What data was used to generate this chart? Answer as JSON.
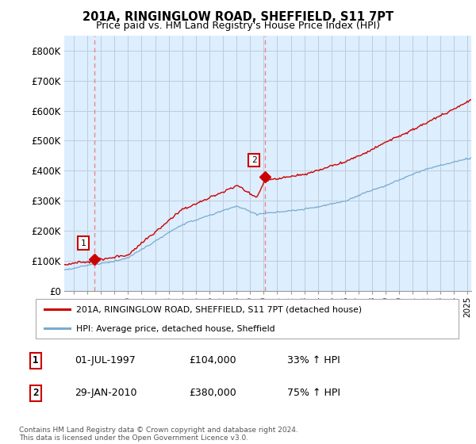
{
  "title": "201A, RINGINGLOW ROAD, SHEFFIELD, S11 7PT",
  "subtitle": "Price paid vs. HM Land Registry's House Price Index (HPI)",
  "ylabel_ticks": [
    "£0",
    "£100K",
    "£200K",
    "£300K",
    "£400K",
    "£500K",
    "£600K",
    "£700K",
    "£800K"
  ],
  "ylim": [
    0,
    850000
  ],
  "xlim_start": 1995.3,
  "xlim_end": 2025.3,
  "sale1_x": 1997.5,
  "sale1_y": 104000,
  "sale2_x": 2010.08,
  "sale2_y": 380000,
  "red_line_color": "#cc0000",
  "blue_line_color": "#7aaacc",
  "marker_color": "#cc0000",
  "vline_color": "#e88888",
  "background_color": "#ffffff",
  "plot_bg_color": "#ddeeff",
  "grid_color": "#c0ccd8",
  "legend_red_label": "201A, RINGINGLOW ROAD, SHEFFIELD, S11 7PT (detached house)",
  "legend_blue_label": "HPI: Average price, detached house, Sheffield",
  "footer": "Contains HM Land Registry data © Crown copyright and database right 2024.\nThis data is licensed under the Open Government Licence v3.0.",
  "table_row1": [
    "1",
    "01-JUL-1997",
    "£104,000",
    "33% ↑ HPI"
  ],
  "table_row2": [
    "2",
    "29-JAN-2010",
    "£380,000",
    "75% ↑ HPI"
  ]
}
